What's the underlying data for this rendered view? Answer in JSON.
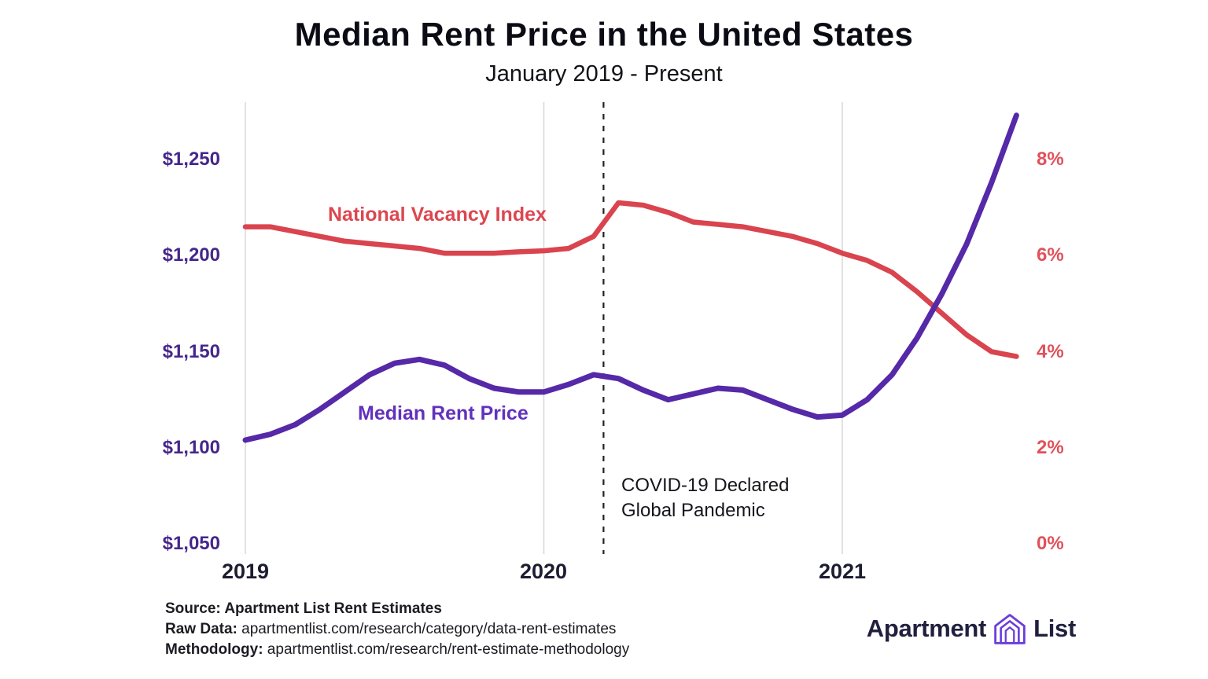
{
  "header": {
    "title": "Median Rent Price in the United States",
    "subtitle": "January 2019 - Present"
  },
  "chart_data": {
    "type": "line",
    "title": "Median Rent Price in the United States",
    "subtitle": "January 2019 - Present",
    "grid": "vertical-year-lines-only",
    "legend_position": "inline-labels-on-plot",
    "x_tick_labels": [
      "2019",
      "2020",
      "2021"
    ],
    "x_tick_positions": [
      2019,
      2020,
      2021
    ],
    "months": [
      "2019-01",
      "2019-02",
      "2019-03",
      "2019-04",
      "2019-05",
      "2019-06",
      "2019-07",
      "2019-08",
      "2019-09",
      "2019-10",
      "2019-11",
      "2019-12",
      "2020-01",
      "2020-02",
      "2020-03",
      "2020-04",
      "2020-05",
      "2020-06",
      "2020-07",
      "2020-08",
      "2020-09",
      "2020-10",
      "2020-11",
      "2020-12",
      "2021-01",
      "2021-02",
      "2021-03",
      "2021-04",
      "2021-05",
      "2021-06",
      "2021-07",
      "2021-08"
    ],
    "left_axis": {
      "ticks": [
        "$1,250",
        "$1,200",
        "$1,150",
        "$1,100",
        "$1,050"
      ],
      "tick_values": [
        1250,
        1200,
        1150,
        1100,
        1050
      ],
      "ylim": [
        1050,
        1280
      ],
      "color": "#45278b"
    },
    "right_axis": {
      "ticks": [
        "8%",
        "6%",
        "4%",
        "2%",
        "0%"
      ],
      "tick_values": [
        8,
        6,
        4,
        2,
        0
      ],
      "ylim": [
        0,
        8.2
      ],
      "color": "#e0515b"
    },
    "series": [
      {
        "name": "National Vacancy Index",
        "axis": "right",
        "color": "#d9444e",
        "values": [
          6.6,
          6.6,
          6.5,
          6.4,
          6.3,
          6.25,
          6.2,
          6.15,
          6.05,
          6.05,
          6.05,
          6.08,
          6.1,
          6.15,
          6.4,
          7.1,
          7.05,
          6.9,
          6.7,
          6.65,
          6.6,
          6.5,
          6.4,
          6.25,
          6.05,
          5.9,
          5.65,
          5.25,
          4.8,
          4.35,
          4.0,
          3.9
        ]
      },
      {
        "name": "Median Rent Price",
        "axis": "left",
        "color": "#5529a7",
        "values": [
          1104,
          1107,
          1112,
          1120,
          1129,
          1138,
          1144,
          1146,
          1143,
          1136,
          1131,
          1129,
          1129,
          1133,
          1138,
          1136,
          1130,
          1125,
          1128,
          1131,
          1130,
          1125,
          1120,
          1116,
          1117,
          1125,
          1138,
          1157,
          1180,
          1206,
          1238,
          1273
        ]
      }
    ],
    "annotation": {
      "line1": "COVID-19 Declared",
      "line2": "Global Pandemic",
      "x": 2020.2,
      "style": "dashed-vertical-line"
    }
  },
  "footer": {
    "lines": [
      {
        "prefix": "Source:",
        "rest": " Apartment List Rent Estimates"
      },
      {
        "prefix": "Raw Data:",
        "rest": " apartmentlist.com/research/category/data-rent-estimates"
      },
      {
        "prefix": "Methodology:",
        "rest": " apartmentlist.com/research/rent-estimate-methodology"
      }
    ]
  },
  "logo": {
    "word1": "Apartment",
    "word2": "List",
    "icon_color": "#6b3ed8"
  }
}
